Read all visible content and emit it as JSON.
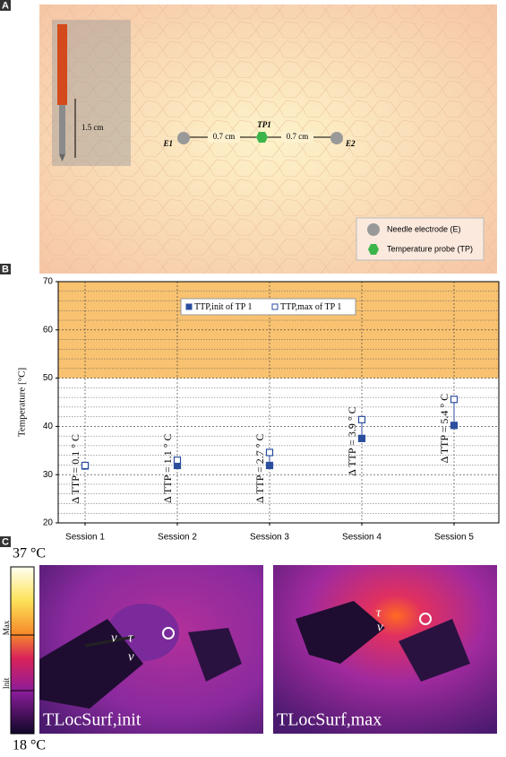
{
  "panel_labels": [
    "A",
    "B",
    "C"
  ],
  "panel_a": {
    "needle_length": "1.5 cm",
    "electrodes": [
      "E1",
      "E2"
    ],
    "probe": "TP1",
    "distances": [
      "0.7 cm",
      "0.7 cm"
    ],
    "legend": [
      "Needle electrode (E)",
      "Temperature probe (TP)"
    ]
  },
  "chart_data": {
    "type": "scatter",
    "y_label": "Temperature [°C]",
    "categories": [
      "Session 1",
      "Session 2",
      "Session 3",
      "Session 4",
      "Session 5"
    ],
    "series": [
      {
        "name": "TTP,init of TP 1",
        "color": "#2b4e9e",
        "filled": true,
        "values": [
          31.8,
          31.9,
          31.9,
          37.5,
          40.2
        ]
      },
      {
        "name": "TTP,max of TP 1",
        "color": "#2b4e9e",
        "filled": false,
        "values": [
          31.9,
          33.0,
          34.6,
          41.4,
          45.6
        ]
      }
    ],
    "annotations": [
      "Δ TTP = 0.1 ° C",
      "Δ TTP = 1.1 ° C",
      "Δ TTP = 2.7 ° C",
      "Δ TTP = 3.9 ° C",
      "Δ TTP = 5.4 ° C"
    ],
    "ylim": [
      20,
      70
    ],
    "yticks": [
      20,
      30,
      40,
      50,
      60,
      70
    ],
    "minor_yticks": [
      22,
      24,
      26,
      28,
      32,
      34,
      36,
      38,
      42,
      44,
      46,
      48,
      52,
      54,
      56,
      58,
      62,
      64,
      66,
      68
    ],
    "highlight_range": [
      50,
      70
    ],
    "highlight_color": "#f8c271",
    "grid": true,
    "legend": "top"
  },
  "panel_c": {
    "colorbar": {
      "max_label": "37 °C",
      "min_label": "18 °C",
      "marks": [
        "Max",
        "Init"
      ]
    },
    "images": [
      {
        "caption": "TLocSurf,init",
        "symbols": [
          "ν",
          "τ",
          "ν"
        ]
      },
      {
        "caption": "TLocSurf,max",
        "symbols": [
          "τ",
          "ν"
        ]
      }
    ]
  }
}
